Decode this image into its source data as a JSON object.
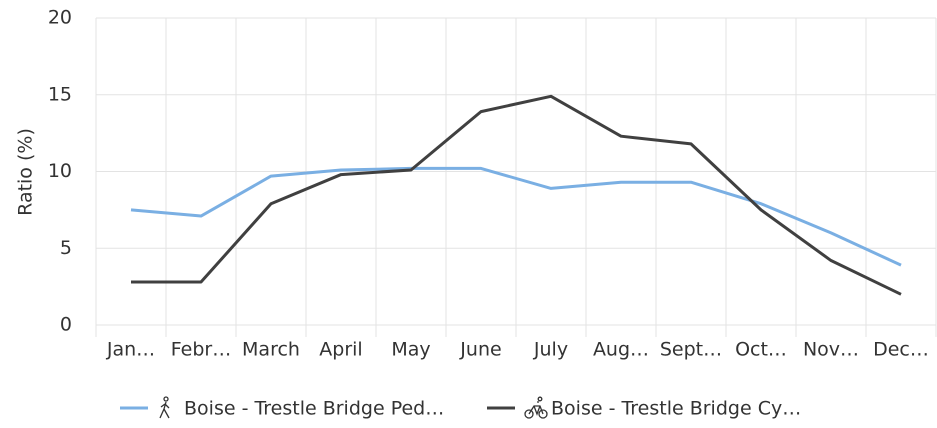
{
  "chart_data": {
    "type": "line",
    "y_label": "Ratio (%)",
    "categories": [
      "Jan…",
      "Febr…",
      "March",
      "April",
      "May",
      "June",
      "July",
      "Aug…",
      "Sept…",
      "Oct…",
      "Nov…",
      "Dec…"
    ],
    "series": [
      {
        "name": "Boise - Trestle Bridge Ped…",
        "color": "#7aafe3",
        "values": [
          7.5,
          7.1,
          9.7,
          10.1,
          10.2,
          10.2,
          8.9,
          9.3,
          9.3,
          7.9,
          6.0,
          3.9
        ]
      },
      {
        "name": "Boise - Trestle Bridge Cy…",
        "color": "#404040",
        "values": [
          2.8,
          2.8,
          7.9,
          9.8,
          10.1,
          13.9,
          14.9,
          12.3,
          11.8,
          7.5,
          4.2,
          2.0
        ]
      }
    ],
    "ylim": [
      0,
      20
    ],
    "yticks": [
      0,
      5,
      10,
      15,
      20
    ],
    "grid": true
  }
}
